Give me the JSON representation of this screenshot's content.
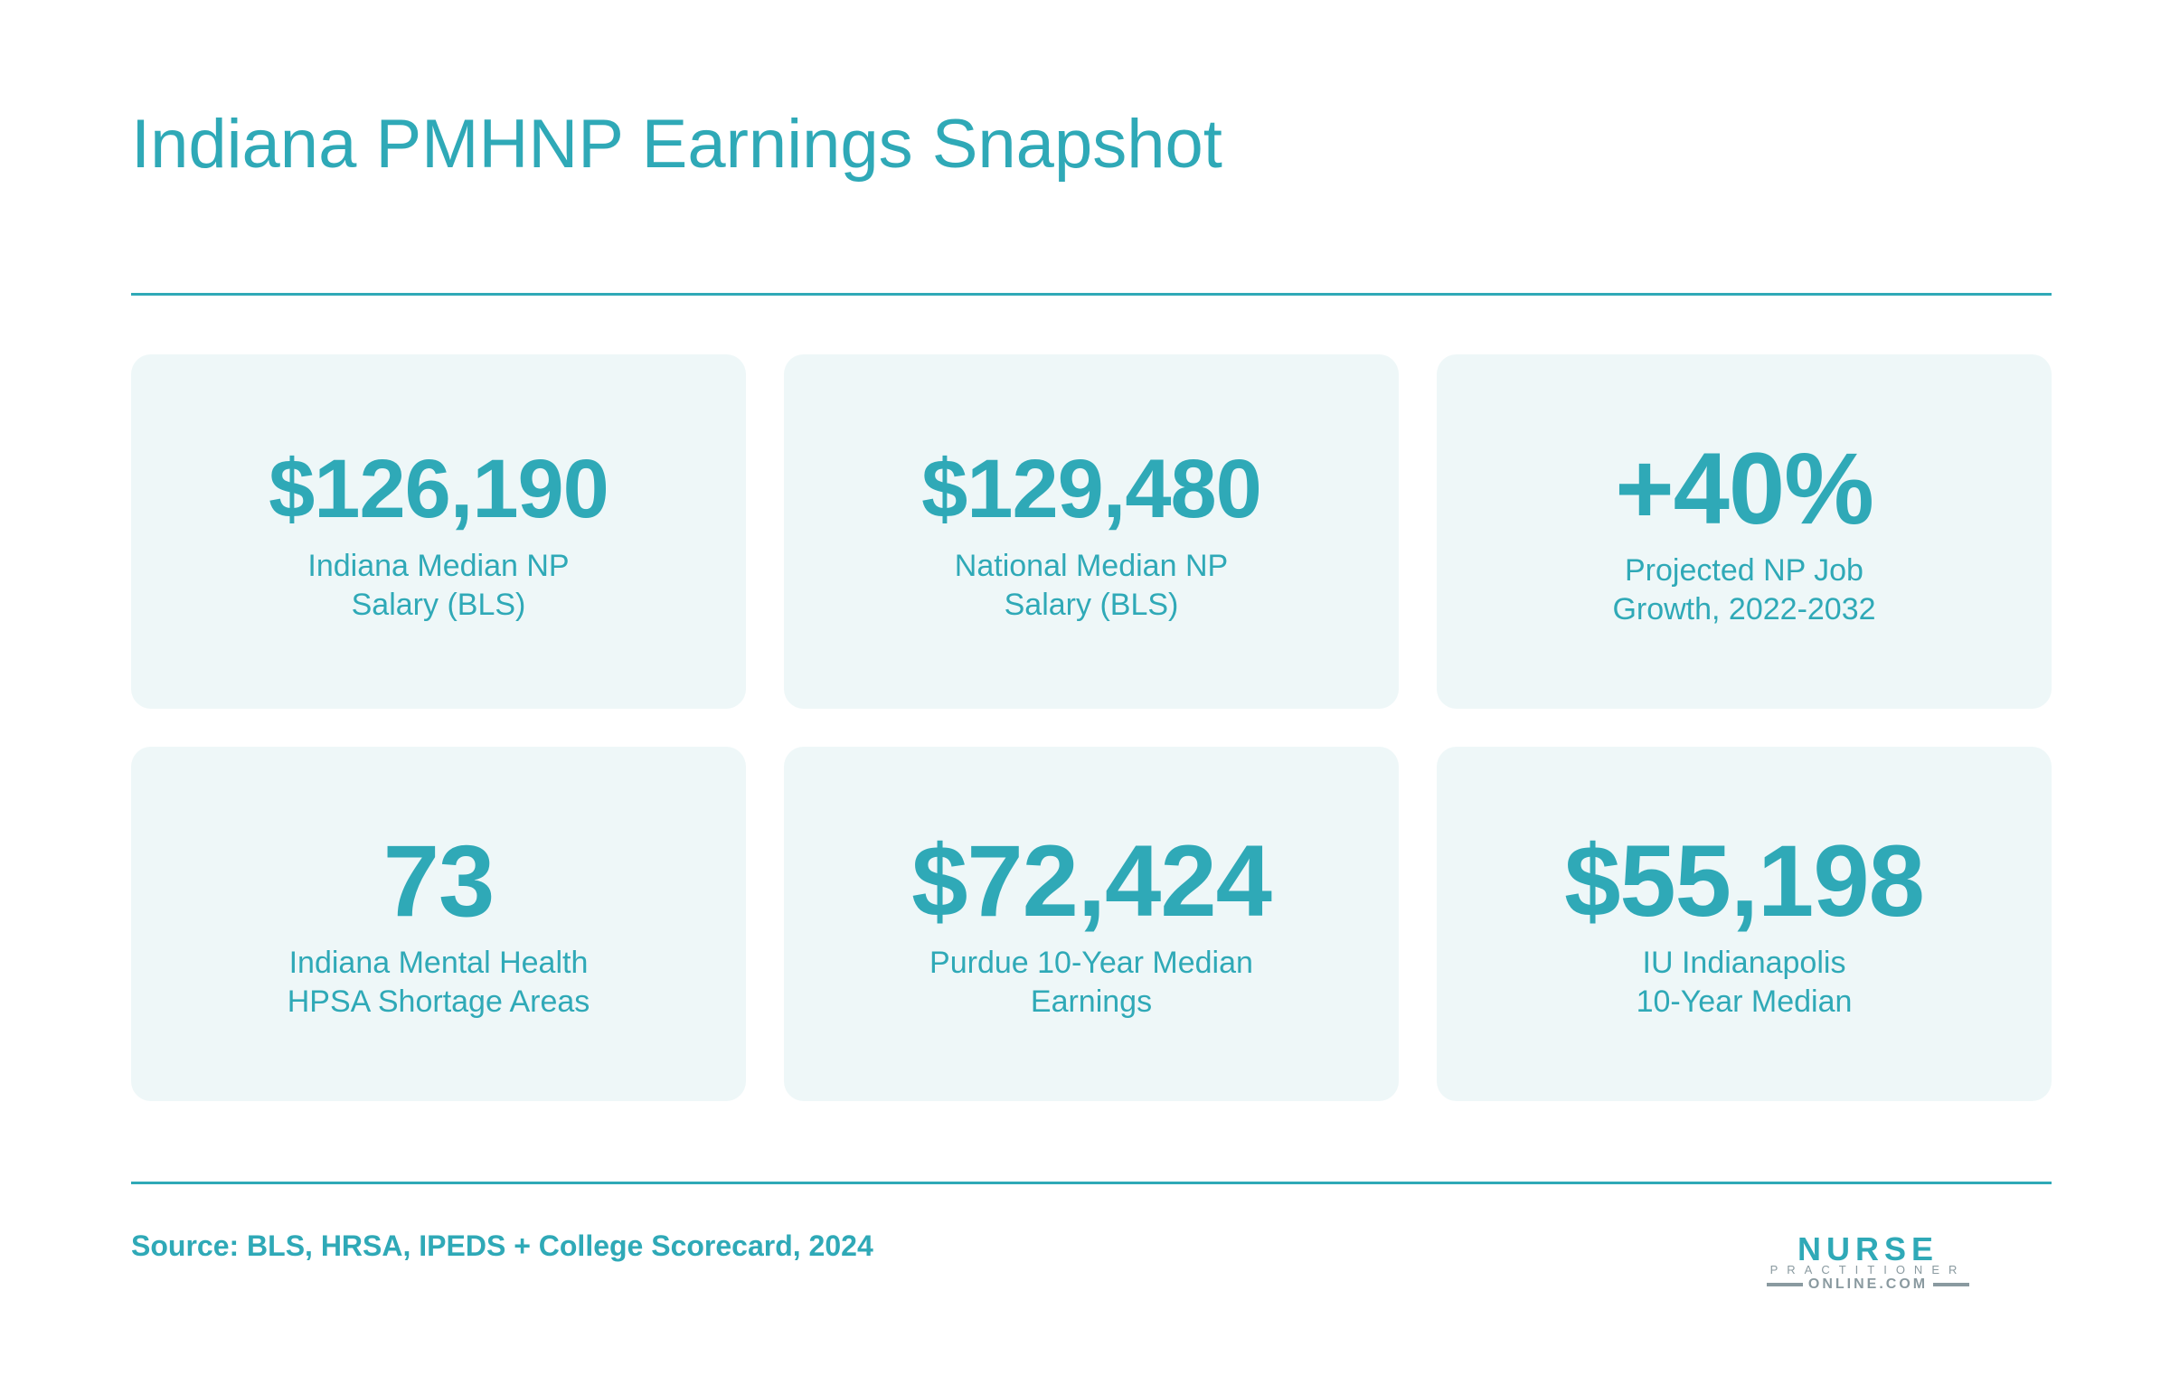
{
  "title": "Indiana PMHNP Earnings Snapshot",
  "cards": [
    {
      "value": "$126,190",
      "label": "Indiana Median NP\nSalary (BLS)"
    },
    {
      "value": "$129,480",
      "label": "National Median NP\nSalary (BLS)"
    },
    {
      "value": "+40%",
      "label": "Projected NP Job\nGrowth, 2022-2032"
    },
    {
      "value": "73",
      "label": "Indiana Mental Health\nHPSA Shortage Areas"
    },
    {
      "value": "$72,424",
      "label": "Purdue 10-Year Median\nEarnings"
    },
    {
      "value": "$55,198",
      "label": "IU Indianapolis\n10-Year Median"
    }
  ],
  "source": "Source: BLS, HRSA, IPEDS + College Scorecard, 2024",
  "logo": {
    "line1": "NURSE",
    "line2": "PRACTITIONER",
    "line3": "ONLINE.COM"
  },
  "colors": {
    "accent": "#2fa9b7",
    "card_background": "#eef7f8",
    "logo_gray": "#8a9aa0"
  }
}
